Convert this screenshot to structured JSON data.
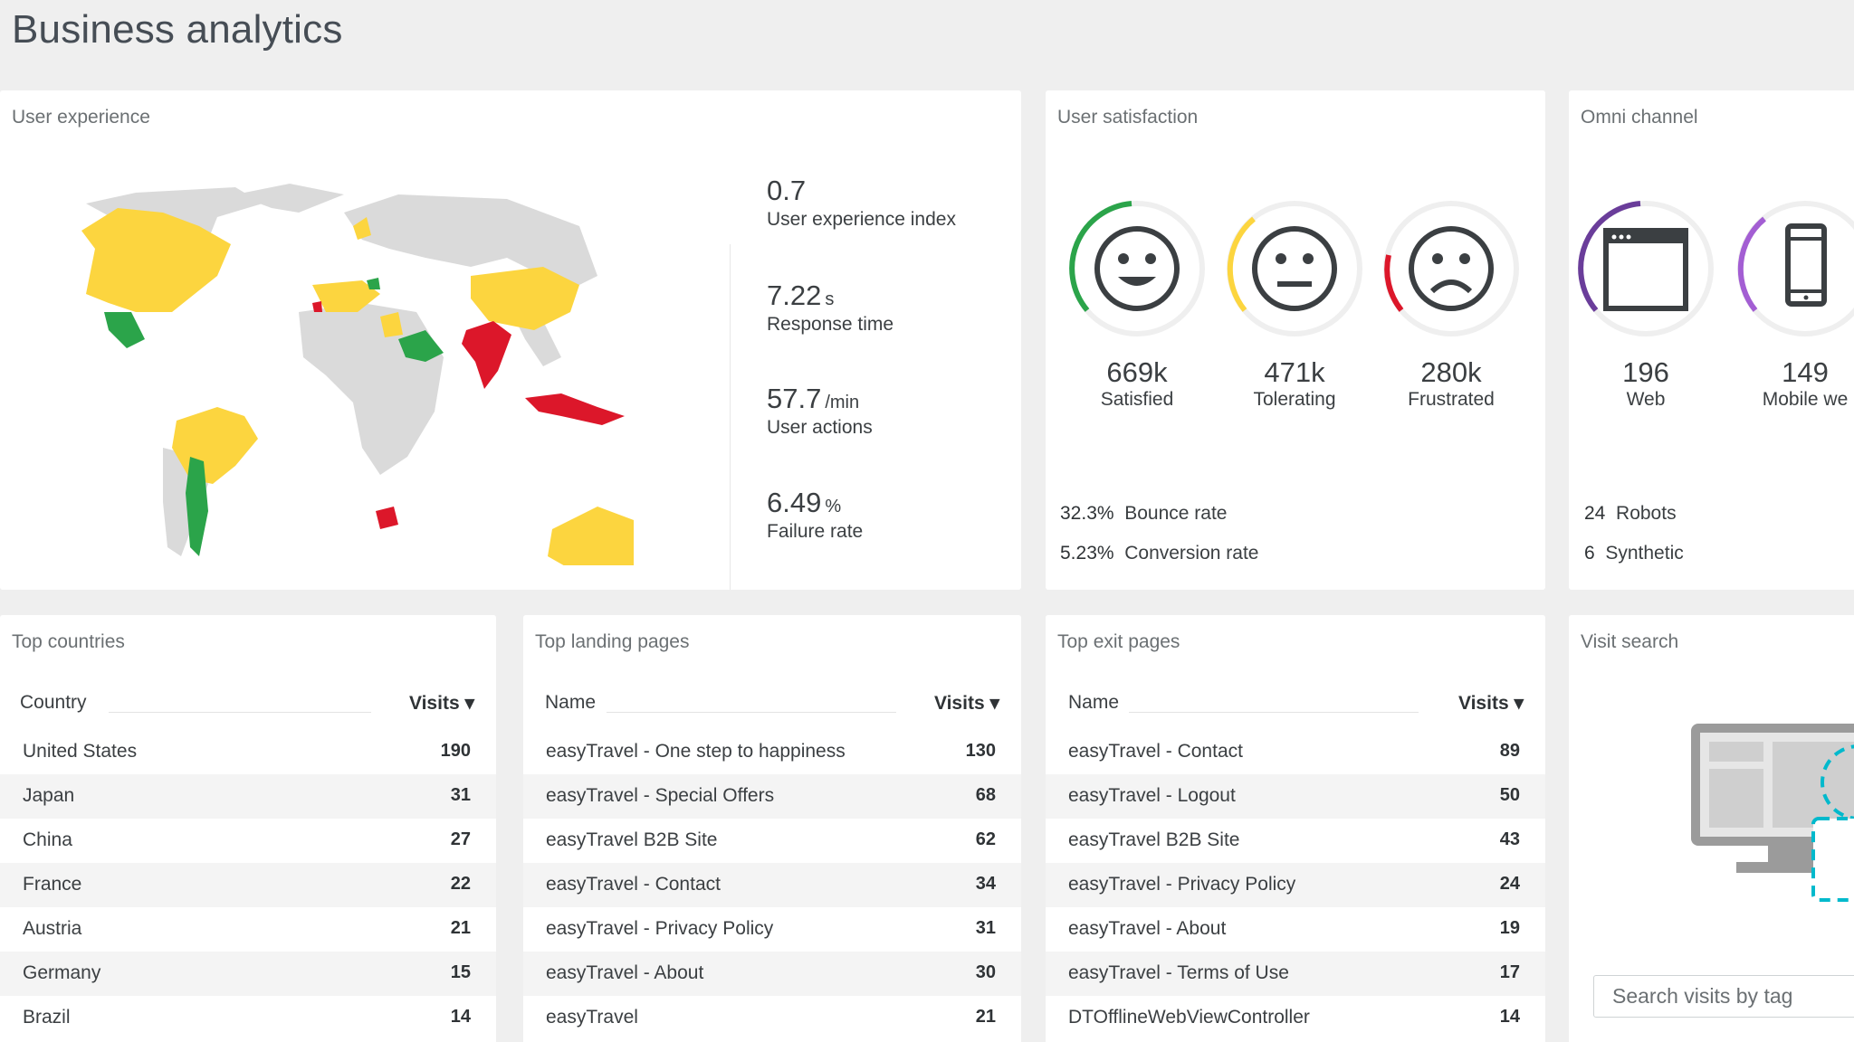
{
  "page": {
    "title": "Business analytics"
  },
  "user_experience": {
    "title": "User experience",
    "kpis": [
      {
        "value": "0.7",
        "unit": "",
        "label": "User experience index"
      },
      {
        "value": "7.22",
        "unit": "s",
        "label": "Response time"
      },
      {
        "value": "57.7",
        "unit": "/min",
        "label": "User actions"
      },
      {
        "value": "6.49",
        "unit": "%",
        "label": "Failure rate"
      }
    ],
    "map_colors": {
      "satisfied": "#2ba44a",
      "tolerating": "#fcd53f",
      "frustrated": "#dc172a",
      "no_data": "#dadada"
    }
  },
  "user_satisfaction": {
    "title": "User satisfaction",
    "gauges": [
      {
        "value": "669k",
        "label": "Satisfied",
        "icon": "smile-face-icon",
        "color": "#2ba44a",
        "level": 0.45
      },
      {
        "value": "471k",
        "label": "Tolerating",
        "icon": "neutral-face-icon",
        "color": "#fcd53f",
        "level": 0.32
      },
      {
        "value": "280k",
        "label": "Frustrated",
        "icon": "sad-face-icon",
        "color": "#dc172a",
        "level": 0.2
      }
    ],
    "bounce_value": "32.3%",
    "bounce_label": "Bounce rate",
    "conversion_value": "5.23%",
    "conversion_label": "Conversion rate"
  },
  "omni_channel": {
    "title": "Omni channel",
    "gauges": [
      {
        "value": "196",
        "label": "Web",
        "icon": "browser-window-icon",
        "color": "#6a3d9a",
        "level": 0.45
      },
      {
        "value": "149",
        "label": "Mobile we",
        "icon": "mobile-phone-icon",
        "color": "#a35ed3",
        "level": 0.3
      }
    ],
    "robots_value": "24",
    "robots_label": "Robots",
    "synthetic_value": "6",
    "synthetic_label": "Synthetic"
  },
  "top_countries": {
    "title": "Top countries",
    "col_name": "Country",
    "col_visits": "Visits ▾",
    "rows": [
      {
        "name": "United States",
        "visits": "190"
      },
      {
        "name": "Japan",
        "visits": "31"
      },
      {
        "name": "China",
        "visits": "27"
      },
      {
        "name": "France",
        "visits": "22"
      },
      {
        "name": "Austria",
        "visits": "21"
      },
      {
        "name": "Germany",
        "visits": "15"
      },
      {
        "name": "Brazil",
        "visits": "14"
      }
    ]
  },
  "top_landing_pages": {
    "title": "Top landing pages",
    "col_name": "Name",
    "col_visits": "Visits ▾",
    "rows": [
      {
        "name": "easyTravel - One step to happiness",
        "visits": "130"
      },
      {
        "name": "easyTravel - Special Offers",
        "visits": "68"
      },
      {
        "name": "easyTravel B2B Site",
        "visits": "62"
      },
      {
        "name": "easyTravel - Contact",
        "visits": "34"
      },
      {
        "name": "easyTravel - Privacy Policy",
        "visits": "31"
      },
      {
        "name": "easyTravel - About",
        "visits": "30"
      },
      {
        "name": "easyTravel",
        "visits": "21"
      }
    ]
  },
  "top_exit_pages": {
    "title": "Top exit pages",
    "col_name": "Name",
    "col_visits": "Visits ▾",
    "rows": [
      {
        "name": "easyTravel - Contact",
        "visits": "89"
      },
      {
        "name": "easyTravel - Logout",
        "visits": "50"
      },
      {
        "name": "easyTravel B2B Site",
        "visits": "43"
      },
      {
        "name": "easyTravel - Privacy Policy",
        "visits": "24"
      },
      {
        "name": "easyTravel - About",
        "visits": "19"
      },
      {
        "name": "easyTravel - Terms of Use",
        "visits": "17"
      },
      {
        "name": "DTOfflineWebViewController",
        "visits": "14"
      }
    ]
  },
  "visit_search": {
    "title": "Visit search",
    "placeholder": "Search visits by tag"
  }
}
